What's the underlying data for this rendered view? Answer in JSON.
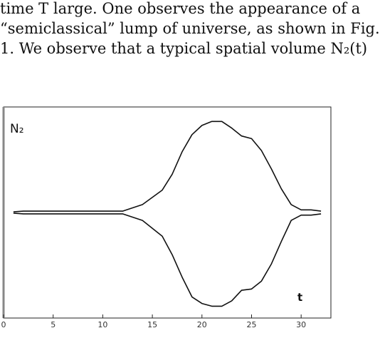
{
  "paragraph": {
    "lines": [
      "time T large.  One observes the appearance of a",
      "“semiclassical” lump of universe, as shown in Fig.",
      "1.  We observe that a typical spatial volume N₂(t)"
    ]
  },
  "chart_data": {
    "type": "line",
    "ylabel": "N₂",
    "xlabel": "t",
    "xlim": [
      0,
      33
    ],
    "ylim": [
      -8,
      8
    ],
    "x_ticks": [
      0,
      5,
      10,
      15,
      20,
      25,
      30
    ],
    "grid": false,
    "series": [
      {
        "x": [
          1,
          2,
          4,
          6,
          8,
          10,
          12,
          14,
          16,
          17,
          18,
          19,
          20,
          21,
          22,
          23,
          24,
          25,
          26,
          27,
          28,
          29,
          30,
          31,
          32
        ],
        "values": [
          0.05,
          0.1,
          0.1,
          0.1,
          0.1,
          0.1,
          0.1,
          0.6,
          1.7,
          2.9,
          4.6,
          5.9,
          6.6,
          6.9,
          6.9,
          6.4,
          5.8,
          5.6,
          4.7,
          3.3,
          1.8,
          0.6,
          0.2,
          0.2,
          0.1
        ]
      },
      {
        "x": [
          1,
          2,
          4,
          6,
          8,
          10,
          12,
          14,
          16,
          17,
          18,
          19,
          20,
          21,
          22,
          23,
          24,
          25,
          26,
          27,
          28,
          29,
          30,
          31,
          32
        ],
        "values": [
          -0.05,
          -0.1,
          -0.1,
          -0.1,
          -0.1,
          -0.1,
          -0.1,
          -0.6,
          -1.8,
          -3.2,
          -4.9,
          -6.4,
          -6.9,
          -7.1,
          -7.1,
          -6.7,
          -5.9,
          -5.8,
          -5.2,
          -3.9,
          -2.2,
          -0.6,
          -0.2,
          -0.2,
          -0.1
        ]
      }
    ]
  }
}
